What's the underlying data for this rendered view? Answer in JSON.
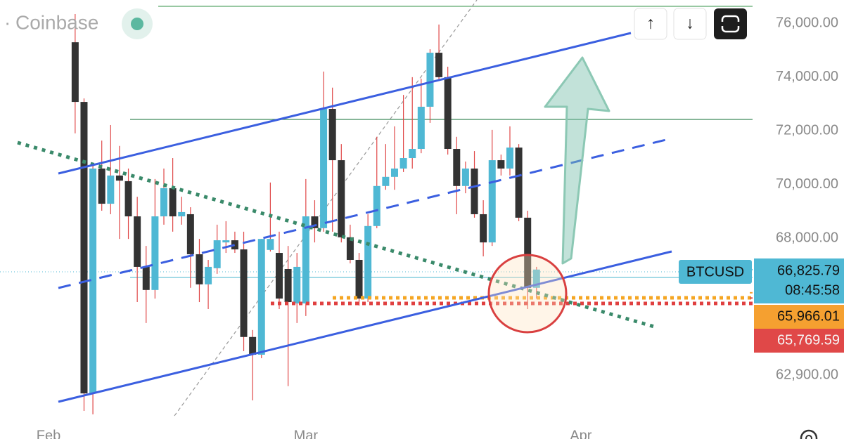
{
  "chart_data": {
    "type": "candlestick",
    "source": "Coinbase",
    "symbol": "BTCUSD",
    "toolbar": [
      "↑",
      "↓"
    ],
    "up_color": "#4fb8d4",
    "down_color": "#333333",
    "xlim": [
      -5.47,
      79.35
    ],
    "xticks": [
      {
        "value": 0,
        "label": "Feb"
      },
      {
        "value": 29,
        "label": "Mar"
      },
      {
        "value": 60,
        "label": "Apr"
      }
    ],
    "ylim": [
      60523,
      76863
    ],
    "yticks": [
      {
        "value": 76000,
        "label": "76,000.00"
      },
      {
        "value": 74000,
        "label": "74,000.00"
      },
      {
        "value": 72000,
        "label": "72,000.00"
      },
      {
        "value": 70000,
        "label": "70,000.00"
      },
      {
        "value": 68000,
        "label": "68,000.00"
      },
      {
        "value": 62900,
        "label": "62,900.00"
      }
    ],
    "x": [
      3,
      4,
      5,
      6,
      7,
      8,
      9,
      10,
      11,
      12,
      13,
      14,
      15,
      16,
      17,
      18,
      19,
      20,
      21,
      22,
      23,
      24,
      25,
      26,
      27,
      28,
      29,
      30,
      31,
      32,
      33,
      34,
      35,
      36,
      37,
      38,
      39,
      40,
      41,
      42,
      43,
      44,
      45,
      46,
      47,
      48,
      49,
      50,
      51,
      52,
      53,
      54,
      55
    ],
    "open": [
      75290,
      73070,
      62220,
      70590,
      69280,
      70330,
      70120,
      68810,
      66930,
      66070,
      68810,
      69860,
      68810,
      68890,
      67400,
      66280,
      66880,
      67840,
      67920,
      67580,
      64320,
      63660,
      67560,
      67450,
      66850,
      65570,
      65570,
      68810,
      68370,
      72810,
      70900,
      68030,
      67190,
      65750,
      68450,
      69940,
      70280,
      70590,
      70980,
      71320,
      72890,
      74900,
      73990,
      71320,
      69940,
      70590,
      68890,
      67840,
      70900,
      70590,
      71370,
      68760,
      66150
    ],
    "high": [
      76340,
      73200,
      70800,
      71630,
      72210,
      71430,
      70590,
      69540,
      67710,
      70200,
      70590,
      70980,
      69540,
      69150,
      67970,
      67190,
      68500,
      68630,
      68240,
      68240,
      64580,
      67970,
      70070,
      68240,
      67710,
      67450,
      70200,
      69410,
      74200,
      73600,
      71500,
      68500,
      67450,
      68890,
      71770,
      71500,
      72160,
      73330,
      73990,
      73930,
      75030,
      75950,
      74380,
      71770,
      70850,
      71240,
      69410,
      72030,
      71110,
      72160,
      71500,
      69020,
      66930
    ],
    "low": [
      71900,
      61570,
      61440,
      69020,
      68890,
      67970,
      67970,
      65620,
      64840,
      65750,
      68500,
      68240,
      68500,
      66150,
      65620,
      65360,
      66670,
      67450,
      67450,
      63790,
      61960,
      63530,
      67500,
      65360,
      62490,
      64840,
      65100,
      67840,
      68240,
      68240,
      67840,
      67060,
      65490,
      65620,
      68370,
      69800,
      69800,
      70460,
      70590,
      71160,
      72290,
      73860,
      71110,
      68890,
      69670,
      68760,
      67320,
      67710,
      70330,
      70330,
      68630,
      65360,
      65750
    ],
    "close": [
      73070,
      62220,
      70590,
      69280,
      70330,
      70140,
      68810,
      66930,
      66070,
      68810,
      69860,
      68810,
      68970,
      67400,
      66280,
      66930,
      67920,
      67920,
      67580,
      64320,
      63660,
      67970,
      67970,
      65750,
      65620,
      66930,
      68810,
      68370,
      72810,
      70900,
      68030,
      67190,
      65750,
      68450,
      69940,
      70280,
      70590,
      70980,
      71320,
      72890,
      74900,
      73990,
      71320,
      69940,
      70590,
      68890,
      67840,
      70900,
      70590,
      71370,
      68760,
      66150,
      66830
    ],
    "price_labels": [
      {
        "value": 66825.79,
        "label": "66,825.79",
        "color": "#4fb8d4"
      },
      {
        "value": 65966.01,
        "label": "65,966.01",
        "color": "#f5a030"
      },
      {
        "value": 65769.59,
        "label": "65,769.59",
        "color": "#e04848"
      }
    ],
    "countdown": "08:45:58"
  }
}
